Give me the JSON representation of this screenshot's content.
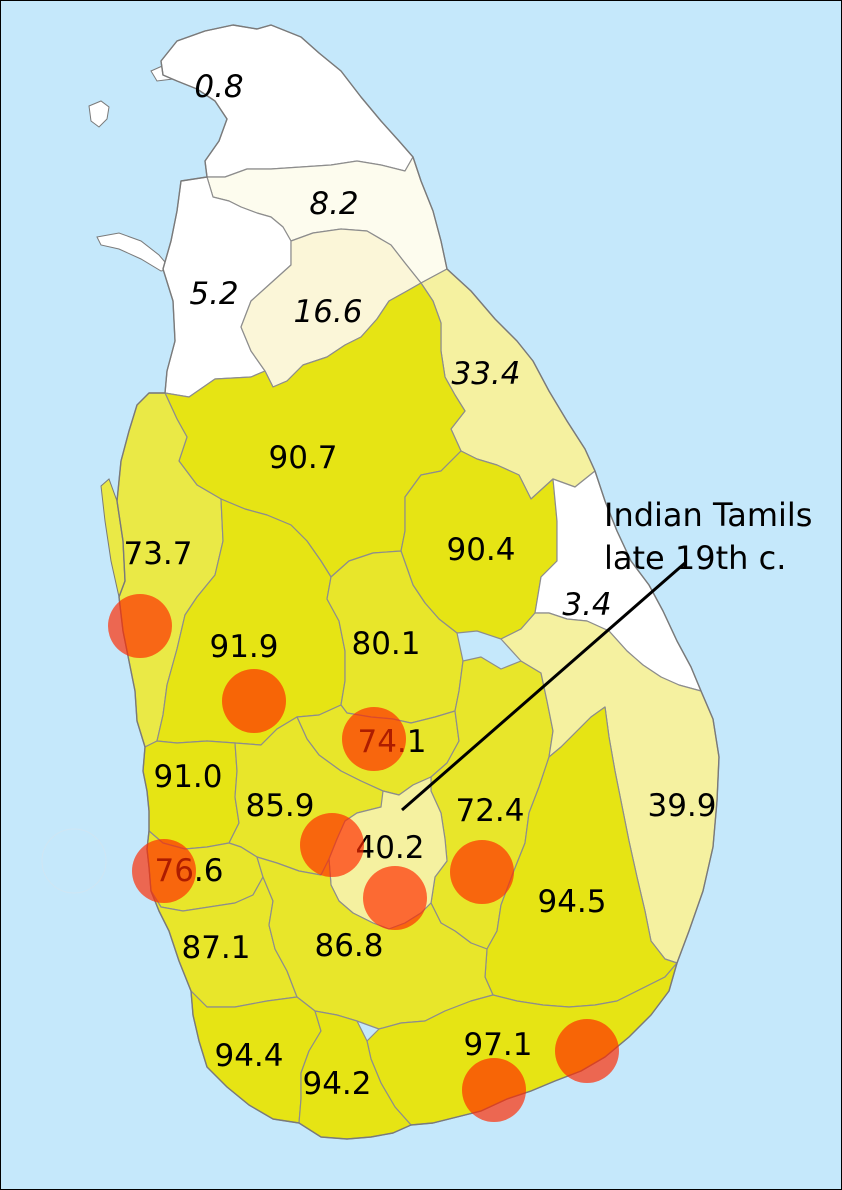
{
  "colors": {
    "sea": "#c5e8fb",
    "white_band": "#ffffff",
    "pale_cream": "#fdfcee",
    "light_cream": "#fbf6d8",
    "pale_yellow": "#f5f1a0",
    "yellow_light": "#eae946",
    "yellow_mid": "#e8e62a",
    "yellow_strong": "#e6e414",
    "marker_fill": "#ff2a00"
  },
  "districts": [
    {
      "id": "jaffna",
      "value": "0.8",
      "style": "italic",
      "color": "white_band"
    },
    {
      "id": "kilinochchi",
      "value": "8.2",
      "style": "italic",
      "color": "pale_cream"
    },
    {
      "id": "mannar",
      "value": "5.2",
      "style": "italic",
      "color": "white_band"
    },
    {
      "id": "vavuniya",
      "value": "16.6",
      "style": "italic",
      "color": "light_cream"
    },
    {
      "id": "trincomalee",
      "value": "33.4",
      "style": "italic",
      "color": "pale_yellow"
    },
    {
      "id": "anuradhapura",
      "value": "90.7",
      "style": "normal",
      "color": "yellow_strong"
    },
    {
      "id": "polonnaruwa",
      "value": "90.4",
      "style": "normal",
      "color": "yellow_strong"
    },
    {
      "id": "puttalam",
      "value": "73.7",
      "style": "normal",
      "color": "yellow_light"
    },
    {
      "id": "batticaloa",
      "value": "3.4",
      "style": "italic",
      "color": "white_band"
    },
    {
      "id": "kurunegala",
      "value": "91.9",
      "style": "normal",
      "color": "yellow_strong"
    },
    {
      "id": "matale",
      "value": "80.1",
      "style": "normal",
      "color": "yellow_mid"
    },
    {
      "id": "kandy",
      "value": "74.1",
      "style": "normal",
      "color": "yellow_mid"
    },
    {
      "id": "gampaha",
      "value": "91.0",
      "style": "normal",
      "color": "yellow_strong"
    },
    {
      "id": "kegalle",
      "value": "85.9",
      "style": "normal",
      "color": "yellow_mid"
    },
    {
      "id": "badulla",
      "value": "72.4",
      "style": "normal",
      "color": "yellow_mid"
    },
    {
      "id": "ampara",
      "value": "39.9",
      "style": "normal",
      "color": "pale_yellow"
    },
    {
      "id": "nuwara_eliya",
      "value": "40.2",
      "style": "normal",
      "color": "pale_yellow"
    },
    {
      "id": "colombo",
      "value": "76.6",
      "style": "normal",
      "color": "yellow_mid"
    },
    {
      "id": "monaragala",
      "value": "94.5",
      "style": "normal",
      "color": "yellow_strong"
    },
    {
      "id": "kalutara",
      "value": "87.1",
      "style": "normal",
      "color": "yellow_mid"
    },
    {
      "id": "ratnapura",
      "value": "86.8",
      "style": "normal",
      "color": "yellow_mid"
    },
    {
      "id": "hambantota",
      "value": "97.1",
      "style": "normal",
      "color": "yellow_strong"
    },
    {
      "id": "galle",
      "value": "94.4",
      "style": "normal",
      "color": "yellow_strong"
    },
    {
      "id": "matara",
      "value": "94.2",
      "style": "normal",
      "color": "yellow_strong"
    }
  ],
  "markers": [
    {
      "id": "marker-puttalam-coast"
    },
    {
      "id": "marker-kurunegala"
    },
    {
      "id": "marker-kandy"
    },
    {
      "id": "marker-kegalle"
    },
    {
      "id": "marker-colombo"
    },
    {
      "id": "marker-nuwara-eliya"
    },
    {
      "id": "marker-badulla"
    },
    {
      "id": "marker-hambantota-east"
    },
    {
      "id": "marker-matara-coast"
    }
  ],
  "callout": {
    "line1": "Indian Tamils",
    "line2": "late 19th c."
  }
}
